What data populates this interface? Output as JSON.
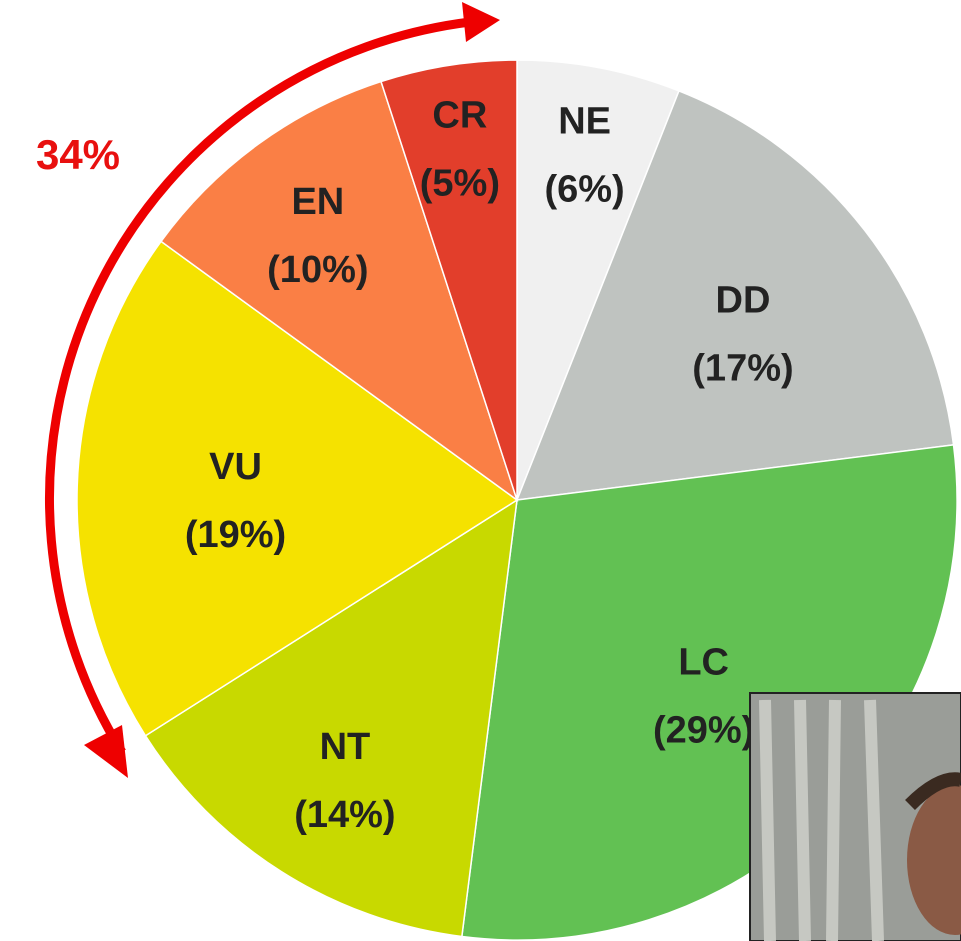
{
  "chart_data": {
    "type": "pie",
    "categories": [
      "NE",
      "DD",
      "LC",
      "NT",
      "VU",
      "EN",
      "CR"
    ],
    "values": [
      6,
      17,
      29,
      14,
      19,
      10,
      5
    ],
    "value_labels": [
      "(6%)",
      "(17%)",
      "(29%)",
      "(14%)",
      "(19%)",
      "(10%)",
      "(5%)"
    ],
    "colors": [
      "#f0f0f0",
      "#bfc3c0",
      "#62c153",
      "#c8d900",
      "#f5e200",
      "#fa7f45",
      "#e23e2b"
    ],
    "annotation": "34%"
  }
}
